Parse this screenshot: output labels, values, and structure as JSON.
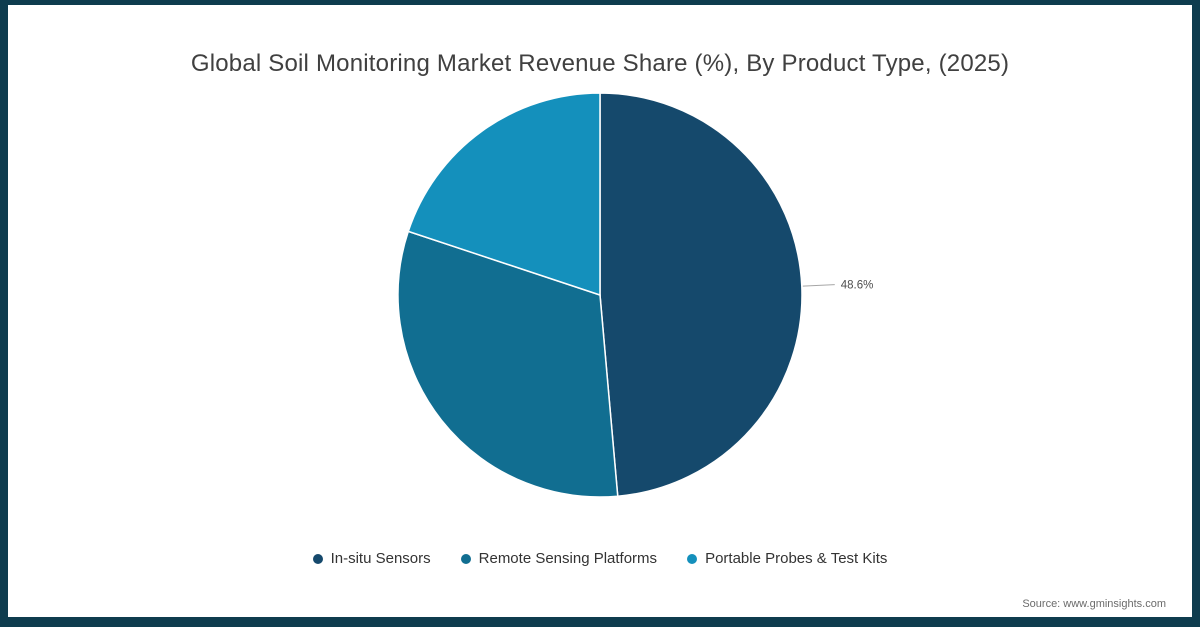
{
  "header": {
    "title": "Global Soil Monitoring Market Revenue Share (%), By Product Type, (2025)"
  },
  "chart_data": {
    "type": "pie",
    "title": "Global Soil Monitoring Market Revenue Share (%), By Product Type, (2025)",
    "series": [
      {
        "name": "In-situ Sensors",
        "value": 48.6,
        "color": "#15496c",
        "label": "48.6%",
        "show_label": true
      },
      {
        "name": "Remote Sensing Platforms",
        "value": 31.5,
        "color": "#116e91",
        "label": "",
        "show_label": false
      },
      {
        "name": "Portable Probes & Test Kits",
        "value": 19.9,
        "color": "#1490bc",
        "label": "",
        "show_label": false
      }
    ],
    "start_angle_deg": 0,
    "direction": "clockwise",
    "legend_position": "bottom",
    "displayed_labels": [
      "48.6%"
    ]
  },
  "footer": {
    "source": "Source: www.gminsights.com"
  },
  "colors": {
    "frame_border": "#0e3c4e",
    "background": "#ffffff",
    "title_text": "#404040",
    "legend_text": "#333333",
    "value_label_text": "#4d4d4d",
    "leader_line": "#a6a6a6",
    "source_text": "#6b6b6b",
    "slice_stroke": "#ffffff"
  }
}
